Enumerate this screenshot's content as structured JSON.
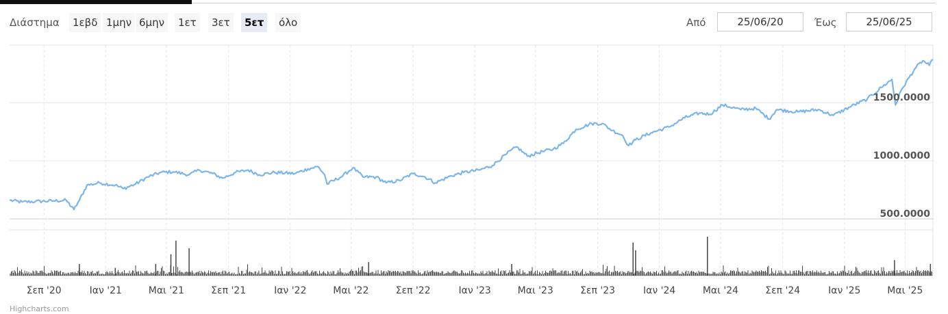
{
  "range_selector": {
    "label": "Διάστημα",
    "buttons": [
      "1εβδ",
      "1μην",
      "6μην",
      "1ετ",
      "3ετ",
      "5ετ",
      "όλο"
    ],
    "active": "5ετ"
  },
  "date_inputs": {
    "from_label": "Από",
    "from_value": "25/06/20",
    "to_label": "Έως",
    "to_value": "25/06/25"
  },
  "credits": "Highcharts.com",
  "chart_data": {
    "type": "line",
    "x_start": "2020-06-25",
    "x_end": "2025-06-25",
    "y_ticks": [
      500,
      1000,
      1500
    ],
    "y_tick_labels": [
      "500.0000",
      "1000.0000",
      "1500.0000"
    ],
    "x_tick_labels": [
      "Σεπ '20",
      "Ιαν '21",
      "Μαι '21",
      "Σεπ '21",
      "Ιαν '22",
      "Μαι '22",
      "Σεπ '22",
      "Ιαν '23",
      "Μαι '23",
      "Σεπ '23",
      "Ιαν '24",
      "Μαι '24",
      "Σεπ '24",
      "Ιαν '25",
      "Μαι '25"
    ],
    "x_tick_dates": [
      "2020-09-01",
      "2021-01-01",
      "2021-05-01",
      "2021-09-01",
      "2022-01-01",
      "2022-05-01",
      "2022-09-01",
      "2023-01-01",
      "2023-05-01",
      "2023-09-01",
      "2024-01-01",
      "2024-05-01",
      "2024-09-01",
      "2025-01-01",
      "2025-05-01"
    ],
    "price_series": {
      "color": "#7cb5ec",
      "points": [
        [
          "2020-06-25",
          660
        ],
        [
          "2020-07-20",
          645
        ],
        [
          "2020-08-15",
          650
        ],
        [
          "2020-09-20",
          655
        ],
        [
          "2020-10-15",
          660
        ],
        [
          "2020-10-30",
          580
        ],
        [
          "2020-11-10",
          660
        ],
        [
          "2020-11-25",
          790
        ],
        [
          "2020-12-20",
          810
        ],
        [
          "2021-01-20",
          790
        ],
        [
          "2021-02-05",
          760
        ],
        [
          "2021-03-01",
          800
        ],
        [
          "2021-03-25",
          860
        ],
        [
          "2021-04-20",
          900
        ],
        [
          "2021-05-15",
          905
        ],
        [
          "2021-06-15",
          880
        ],
        [
          "2021-07-05",
          920
        ],
        [
          "2021-08-01",
          890
        ],
        [
          "2021-08-20",
          850
        ],
        [
          "2021-09-15",
          900
        ],
        [
          "2021-10-10",
          920
        ],
        [
          "2021-11-01",
          880
        ],
        [
          "2021-12-01",
          900
        ],
        [
          "2022-01-10",
          890
        ],
        [
          "2022-02-05",
          930
        ],
        [
          "2022-02-25",
          950
        ],
        [
          "2022-03-10",
          880
        ],
        [
          "2022-03-15",
          800
        ],
        [
          "2022-04-15",
          870
        ],
        [
          "2022-05-05",
          940
        ],
        [
          "2022-05-25",
          860
        ],
        [
          "2022-06-20",
          860
        ],
        [
          "2022-07-10",
          810
        ],
        [
          "2022-08-05",
          830
        ],
        [
          "2022-09-01",
          890
        ],
        [
          "2022-09-25",
          860
        ],
        [
          "2022-10-15",
          810
        ],
        [
          "2022-11-15",
          870
        ],
        [
          "2022-12-10",
          900
        ],
        [
          "2023-01-10",
          920
        ],
        [
          "2023-02-05",
          960
        ],
        [
          "2023-03-05",
          1060
        ],
        [
          "2023-03-25",
          1120
        ],
        [
          "2023-04-15",
          1040
        ],
        [
          "2023-05-15",
          1080
        ],
        [
          "2023-06-05",
          1100
        ],
        [
          "2023-06-25",
          1150
        ],
        [
          "2023-07-20",
          1270
        ],
        [
          "2023-08-20",
          1320
        ],
        [
          "2023-09-10",
          1320
        ],
        [
          "2023-09-30",
          1260
        ],
        [
          "2023-10-20",
          1220
        ],
        [
          "2023-11-01",
          1130
        ],
        [
          "2023-11-15",
          1180
        ],
        [
          "2023-12-15",
          1240
        ],
        [
          "2024-01-20",
          1290
        ],
        [
          "2024-02-20",
          1370
        ],
        [
          "2024-03-20",
          1410
        ],
        [
          "2024-04-10",
          1400
        ],
        [
          "2024-05-05",
          1480
        ],
        [
          "2024-06-10",
          1440
        ],
        [
          "2024-07-10",
          1450
        ],
        [
          "2024-08-05",
          1360
        ],
        [
          "2024-08-20",
          1440
        ],
        [
          "2024-10-01",
          1420
        ],
        [
          "2024-11-10",
          1440
        ],
        [
          "2024-12-10",
          1390
        ],
        [
          "2025-01-15",
          1470
        ],
        [
          "2025-02-15",
          1530
        ],
        [
          "2025-03-15",
          1630
        ],
        [
          "2025-04-05",
          1700
        ],
        [
          "2025-04-12",
          1480
        ],
        [
          "2025-04-25",
          1620
        ],
        [
          "2025-05-20",
          1790
        ],
        [
          "2025-06-05",
          1860
        ],
        [
          "2025-06-18",
          1820
        ],
        [
          "2025-06-25",
          1870
        ]
      ]
    },
    "volume_series": {
      "color": "#434348",
      "spikes": [
        [
          "2020-11-10",
          0.3
        ],
        [
          "2021-01-20",
          0.2
        ],
        [
          "2021-04-10",
          0.3
        ],
        [
          "2021-05-10",
          0.55
        ],
        [
          "2021-05-20",
          0.9
        ],
        [
          "2021-06-15",
          0.7
        ],
        [
          "2022-06-05",
          0.35
        ],
        [
          "2023-03-15",
          0.3
        ],
        [
          "2023-11-10",
          0.85
        ],
        [
          "2023-11-15",
          0.65
        ],
        [
          "2024-04-05",
          1.0
        ],
        [
          "2025-04-10",
          0.4
        ],
        [
          "2025-06-20",
          0.3
        ]
      ]
    }
  }
}
